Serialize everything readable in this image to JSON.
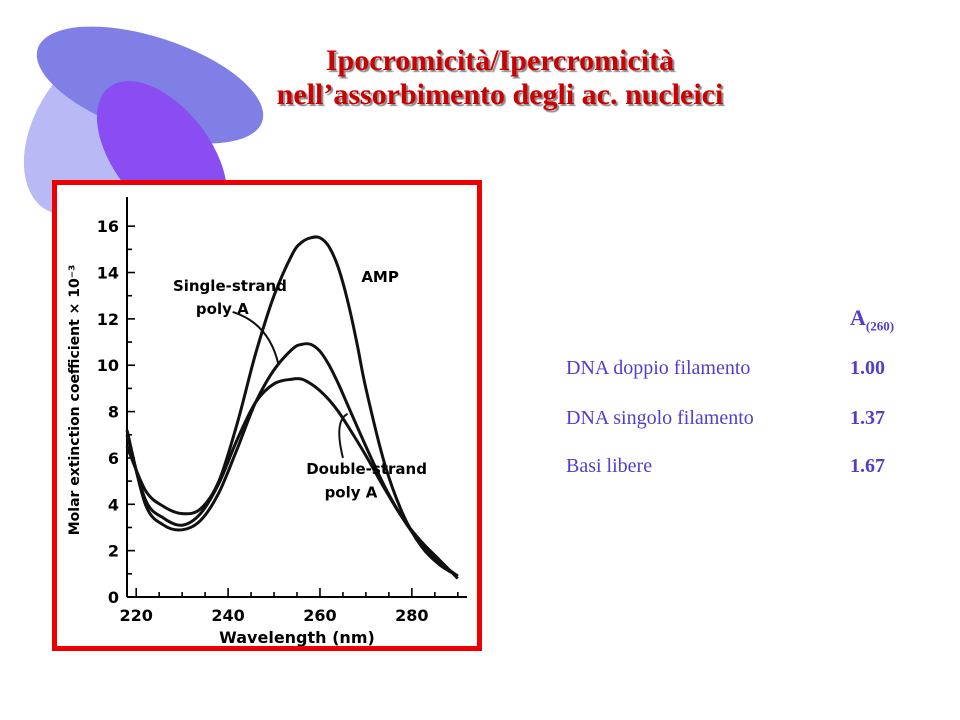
{
  "title": {
    "line1": "Ipocromicità/Ipercromicità",
    "line2": "nell’assorbimento  degli ac. nucleici"
  },
  "colors": {
    "title": "#cc0000",
    "frame": "#ee0000",
    "table_text": "#4f3fc9",
    "ellipse_light": "#b9b9f5",
    "ellipse_mid": "#7f7fe6",
    "ellipse_dark": "#8a4df2"
  },
  "chart_data": {
    "type": "line",
    "xlabel": "Wavelength (nm)",
    "ylabel": "Molar extinction coefficient × 10⁻³",
    "xlim": [
      218,
      292
    ],
    "ylim": [
      0,
      17
    ],
    "x_ticks": [
      "220",
      "240",
      "260",
      "280"
    ],
    "y_ticks": [
      "0",
      "2",
      "4",
      "6",
      "8",
      "10",
      "12",
      "14",
      "16"
    ],
    "series": [
      {
        "name": "AMP",
        "x": [
          218,
          222,
          226,
          230,
          234,
          238,
          242,
          246,
          250,
          254,
          256,
          258,
          260,
          262,
          264,
          266,
          268,
          270,
          274,
          278,
          282,
          286,
          290
        ],
        "y": [
          6.5,
          4.6,
          3.9,
          3.6,
          3.8,
          5.0,
          7.5,
          10.5,
          13.0,
          14.8,
          15.3,
          15.5,
          15.5,
          15.1,
          14.2,
          12.8,
          11.0,
          9.0,
          5.8,
          3.6,
          2.2,
          1.4,
          0.9
        ]
      },
      {
        "name": "Single-strand poly A",
        "x": [
          218,
          222,
          226,
          230,
          234,
          238,
          242,
          246,
          250,
          254,
          256,
          258,
          260,
          262,
          264,
          266,
          270,
          274,
          278,
          282,
          286,
          290
        ],
        "y": [
          7.2,
          4.0,
          3.1,
          2.9,
          3.3,
          4.5,
          6.4,
          8.4,
          9.8,
          10.7,
          10.9,
          10.9,
          10.6,
          10.0,
          9.2,
          8.3,
          6.5,
          4.8,
          3.4,
          2.3,
          1.5,
          0.9
        ]
      },
      {
        "name": "Double-strand poly A",
        "x": [
          218,
          222,
          226,
          230,
          234,
          238,
          242,
          246,
          250,
          254,
          256,
          258,
          260,
          262,
          264,
          266,
          270,
          274,
          278,
          282,
          286,
          290
        ],
        "y": [
          7.0,
          4.2,
          3.4,
          3.1,
          3.6,
          4.9,
          6.8,
          8.4,
          9.2,
          9.4,
          9.4,
          9.2,
          8.9,
          8.5,
          8.0,
          7.4,
          6.1,
          4.7,
          3.4,
          2.4,
          1.6,
          0.8
        ]
      }
    ],
    "annotations": [
      {
        "id": "amp",
        "text": "AMP",
        "x": 269,
        "y": 13.6
      },
      {
        "id": "ss1",
        "text": "Single-strand",
        "x": 228,
        "y": 13.2
      },
      {
        "id": "ss2",
        "text": "poly A",
        "x": 233,
        "y": 12.2
      },
      {
        "id": "ds1",
        "text": "Double-strand",
        "x": 257,
        "y": 5.3
      },
      {
        "id": "ds2",
        "text": "poly A",
        "x": 261,
        "y": 4.3
      }
    ],
    "grid": false
  },
  "table": {
    "header_main": "A",
    "header_sub": "(260)",
    "rows": [
      {
        "label": "DNA doppio filamento",
        "value": "1.00"
      },
      {
        "label": "DNA singolo filamento",
        "value": "1.37"
      },
      {
        "label": "Basi libere",
        "value": "1.67"
      }
    ]
  }
}
